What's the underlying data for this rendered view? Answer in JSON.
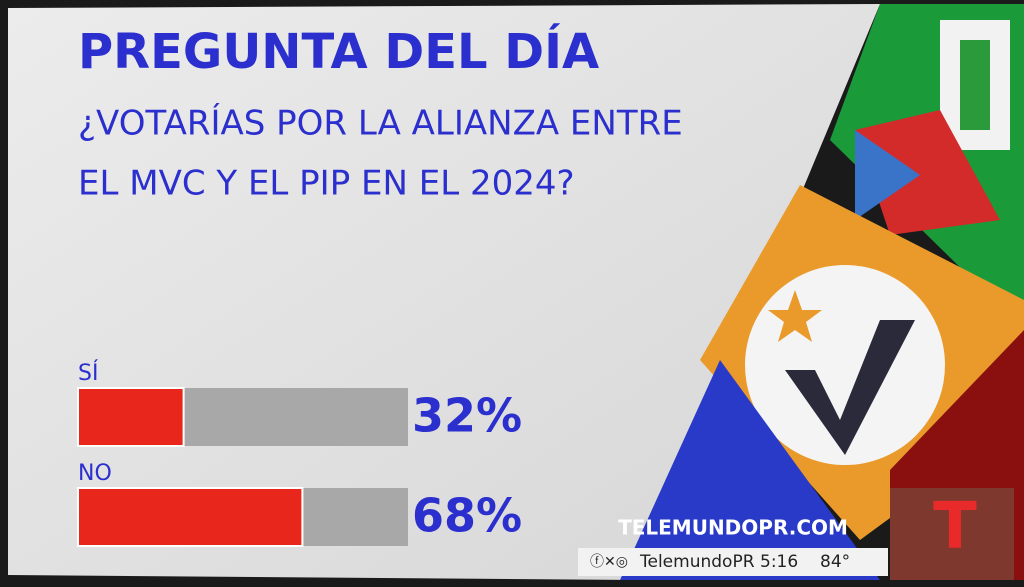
{
  "chart_data": {
    "type": "hbar",
    "title": "PREGUNTA DEL DÍA",
    "subtitle": [
      "¿VOTARÍAS POR LA ALIANZA ENTRE",
      "EL MVC Y EL PIP EN EL 2024?"
    ],
    "categories": [
      "SÍ",
      "NO"
    ],
    "values": [
      32,
      68
    ],
    "value_labels": [
      "32%",
      "68%"
    ],
    "color": "#e8261c",
    "xlim": [
      0,
      100
    ]
  },
  "brand": {
    "website": "TELEMUNDOPR.COM",
    "handle": "TelemundoPR",
    "time": "5:16",
    "temperature": "84°"
  }
}
